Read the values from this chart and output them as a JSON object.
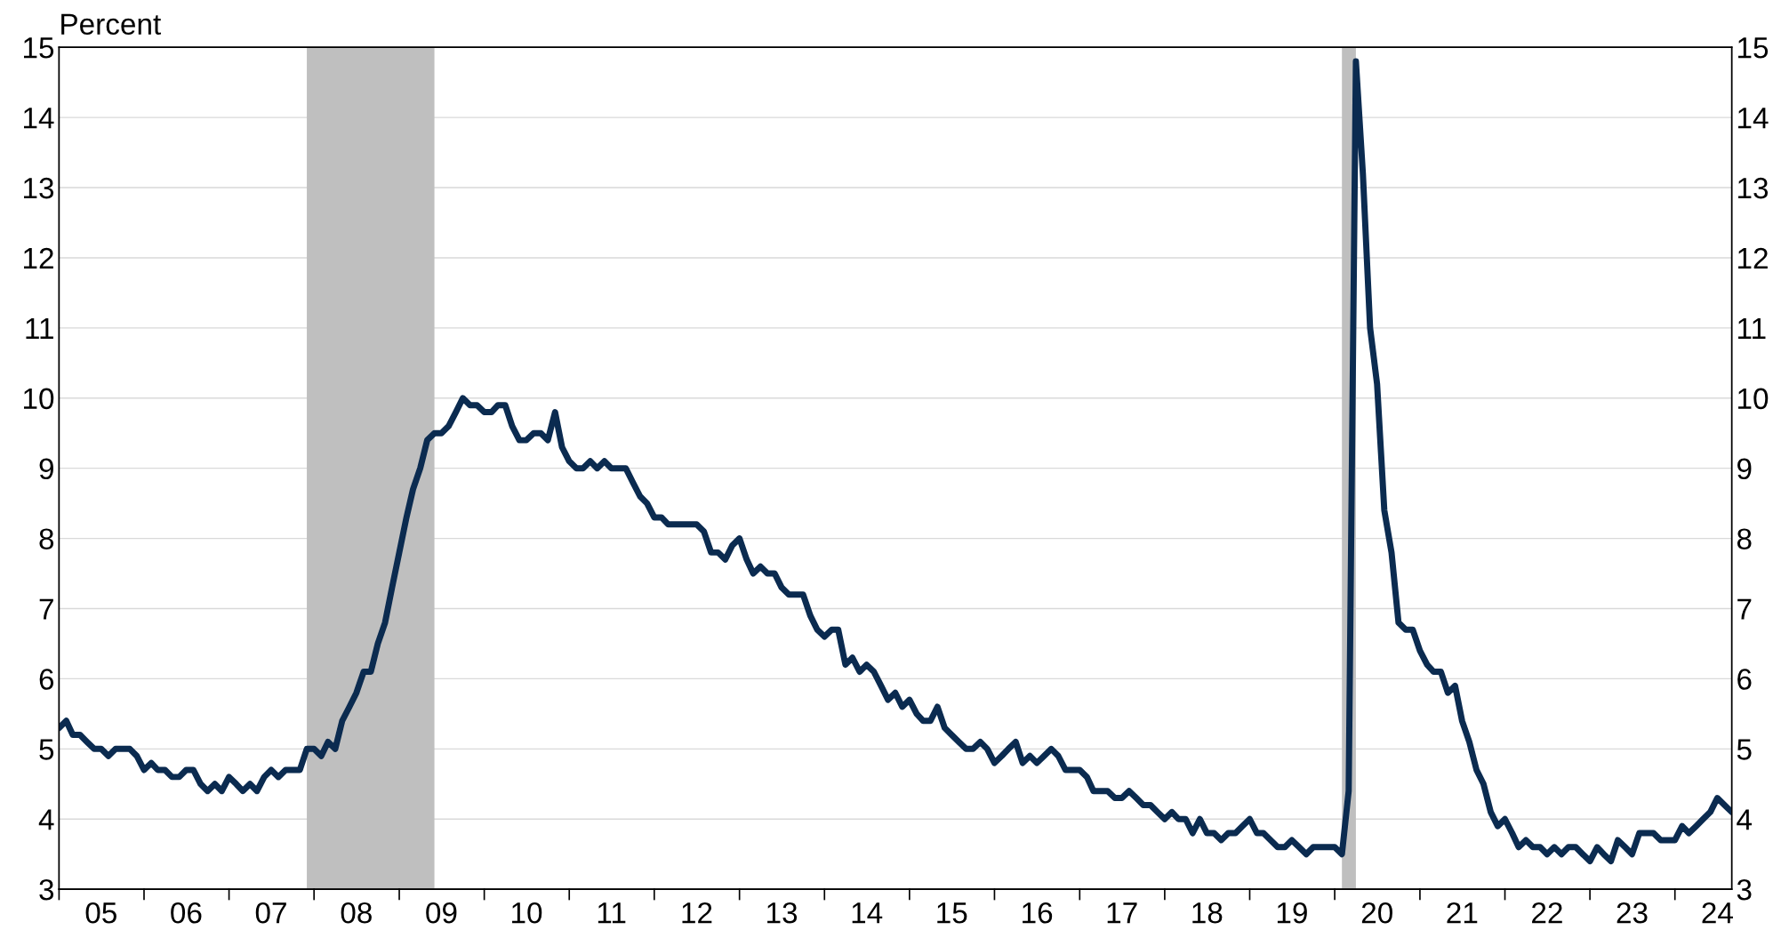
{
  "chart_data": {
    "type": "line",
    "ylabel": "Percent",
    "x": [
      "2005-01",
      "2005-02",
      "2005-03",
      "2005-04",
      "2005-05",
      "2005-06",
      "2005-07",
      "2005-08",
      "2005-09",
      "2005-10",
      "2005-11",
      "2005-12",
      "2006-01",
      "2006-02",
      "2006-03",
      "2006-04",
      "2006-05",
      "2006-06",
      "2006-07",
      "2006-08",
      "2006-09",
      "2006-10",
      "2006-11",
      "2006-12",
      "2007-01",
      "2007-02",
      "2007-03",
      "2007-04",
      "2007-05",
      "2007-06",
      "2007-07",
      "2007-08",
      "2007-09",
      "2007-10",
      "2007-11",
      "2007-12",
      "2008-01",
      "2008-02",
      "2008-03",
      "2008-04",
      "2008-05",
      "2008-06",
      "2008-07",
      "2008-08",
      "2008-09",
      "2008-10",
      "2008-11",
      "2008-12",
      "2009-01",
      "2009-02",
      "2009-03",
      "2009-04",
      "2009-05",
      "2009-06",
      "2009-07",
      "2009-08",
      "2009-09",
      "2009-10",
      "2009-11",
      "2009-12",
      "2010-01",
      "2010-02",
      "2010-03",
      "2010-04",
      "2010-05",
      "2010-06",
      "2010-07",
      "2010-08",
      "2010-09",
      "2010-10",
      "2010-11",
      "2010-12",
      "2011-01",
      "2011-02",
      "2011-03",
      "2011-04",
      "2011-05",
      "2011-06",
      "2011-07",
      "2011-08",
      "2011-09",
      "2011-10",
      "2011-11",
      "2011-12",
      "2012-01",
      "2012-02",
      "2012-03",
      "2012-04",
      "2012-05",
      "2012-06",
      "2012-07",
      "2012-08",
      "2012-09",
      "2012-10",
      "2012-11",
      "2012-12",
      "2013-01",
      "2013-02",
      "2013-03",
      "2013-04",
      "2013-05",
      "2013-06",
      "2013-07",
      "2013-08",
      "2013-09",
      "2013-10",
      "2013-11",
      "2013-12",
      "2014-01",
      "2014-02",
      "2014-03",
      "2014-04",
      "2014-05",
      "2014-06",
      "2014-07",
      "2014-08",
      "2014-09",
      "2014-10",
      "2014-11",
      "2014-12",
      "2015-01",
      "2015-02",
      "2015-03",
      "2015-04",
      "2015-05",
      "2015-06",
      "2015-07",
      "2015-08",
      "2015-09",
      "2015-10",
      "2015-11",
      "2015-12",
      "2016-01",
      "2016-02",
      "2016-03",
      "2016-04",
      "2016-05",
      "2016-06",
      "2016-07",
      "2016-08",
      "2016-09",
      "2016-10",
      "2016-11",
      "2016-12",
      "2017-01",
      "2017-02",
      "2017-03",
      "2017-04",
      "2017-05",
      "2017-06",
      "2017-07",
      "2017-08",
      "2017-09",
      "2017-10",
      "2017-11",
      "2017-12",
      "2018-01",
      "2018-02",
      "2018-03",
      "2018-04",
      "2018-05",
      "2018-06",
      "2018-07",
      "2018-08",
      "2018-09",
      "2018-10",
      "2018-11",
      "2018-12",
      "2019-01",
      "2019-02",
      "2019-03",
      "2019-04",
      "2019-05",
      "2019-06",
      "2019-07",
      "2019-08",
      "2019-09",
      "2019-10",
      "2019-11",
      "2019-12",
      "2020-01",
      "2020-02",
      "2020-03",
      "2020-04",
      "2020-05",
      "2020-06",
      "2020-07",
      "2020-08",
      "2020-09",
      "2020-10",
      "2020-11",
      "2020-12",
      "2021-01",
      "2021-02",
      "2021-03",
      "2021-04",
      "2021-05",
      "2021-06",
      "2021-07",
      "2021-08",
      "2021-09",
      "2021-10",
      "2021-11",
      "2021-12",
      "2022-01",
      "2022-02",
      "2022-03",
      "2022-04",
      "2022-05",
      "2022-06",
      "2022-07",
      "2022-08",
      "2022-09",
      "2022-10",
      "2022-11",
      "2022-12",
      "2023-01",
      "2023-02",
      "2023-03",
      "2023-04",
      "2023-05",
      "2023-06",
      "2023-07",
      "2023-08",
      "2023-09",
      "2023-10",
      "2023-11",
      "2023-12",
      "2024-01",
      "2024-02",
      "2024-03",
      "2024-04",
      "2024-05",
      "2024-06",
      "2024-07",
      "2024-08",
      "2024-09"
    ],
    "series": [
      {
        "color": "#0b2b50",
        "values": [
          5.3,
          5.4,
          5.2,
          5.2,
          5.1,
          5.0,
          5.0,
          4.9,
          5.0,
          5.0,
          5.0,
          4.9,
          4.7,
          4.8,
          4.7,
          4.7,
          4.6,
          4.6,
          4.7,
          4.7,
          4.5,
          4.4,
          4.5,
          4.4,
          4.6,
          4.5,
          4.4,
          4.5,
          4.4,
          4.6,
          4.7,
          4.6,
          4.7,
          4.7,
          4.7,
          5.0,
          5.0,
          4.9,
          5.1,
          5.0,
          5.4,
          5.6,
          5.8,
          6.1,
          6.1,
          6.5,
          6.8,
          7.3,
          7.8,
          8.3,
          8.7,
          9.0,
          9.4,
          9.5,
          9.5,
          9.6,
          9.8,
          10.0,
          9.9,
          9.9,
          9.8,
          9.8,
          9.9,
          9.9,
          9.6,
          9.4,
          9.4,
          9.5,
          9.5,
          9.4,
          9.8,
          9.3,
          9.1,
          9.0,
          9.0,
          9.1,
          9.0,
          9.1,
          9.0,
          9.0,
          9.0,
          8.8,
          8.6,
          8.5,
          8.3,
          8.3,
          8.2,
          8.2,
          8.2,
          8.2,
          8.2,
          8.1,
          7.8,
          7.8,
          7.7,
          7.9,
          8.0,
          7.7,
          7.5,
          7.6,
          7.5,
          7.5,
          7.3,
          7.2,
          7.2,
          7.2,
          6.9,
          6.7,
          6.6,
          6.7,
          6.7,
          6.2,
          6.3,
          6.1,
          6.2,
          6.1,
          5.9,
          5.7,
          5.8,
          5.6,
          5.7,
          5.5,
          5.4,
          5.4,
          5.6,
          5.3,
          5.2,
          5.1,
          5.0,
          5.0,
          5.1,
          5.0,
          4.8,
          4.9,
          5.0,
          5.1,
          4.8,
          4.9,
          4.8,
          4.9,
          5.0,
          4.9,
          4.7,
          4.7,
          4.7,
          4.6,
          4.4,
          4.4,
          4.4,
          4.3,
          4.3,
          4.4,
          4.3,
          4.2,
          4.2,
          4.1,
          4.0,
          4.1,
          4.0,
          4.0,
          3.8,
          4.0,
          3.8,
          3.8,
          3.7,
          3.8,
          3.8,
          3.9,
          4.0,
          3.8,
          3.8,
          3.7,
          3.6,
          3.6,
          3.7,
          3.6,
          3.5,
          3.6,
          3.6,
          3.6,
          3.6,
          3.5,
          4.4,
          14.8,
          13.2,
          11.0,
          10.2,
          8.4,
          7.8,
          6.8,
          6.7,
          6.7,
          6.4,
          6.2,
          6.1,
          6.1,
          5.8,
          5.9,
          5.4,
          5.1,
          4.7,
          4.5,
          4.1,
          3.9,
          4.0,
          3.8,
          3.6,
          3.7,
          3.6,
          3.6,
          3.5,
          3.6,
          3.5,
          3.6,
          3.6,
          3.5,
          3.4,
          3.6,
          3.5,
          3.4,
          3.7,
          3.6,
          3.5,
          3.8,
          3.8,
          3.8,
          3.7,
          3.7,
          3.7,
          3.9,
          3.8,
          3.9,
          4.0,
          4.1,
          4.3,
          4.2,
          4.1
        ]
      }
    ],
    "xlim": [
      "2005-01",
      "2024-09"
    ],
    "xticks": [
      {
        "value": "2005-01",
        "label": null
      },
      {
        "value": "2005-07",
        "label": "05"
      },
      {
        "value": "2006-01",
        "label": null
      },
      {
        "value": "2006-07",
        "label": "06"
      },
      {
        "value": "2007-01",
        "label": null
      },
      {
        "value": "2007-07",
        "label": "07"
      },
      {
        "value": "2008-01",
        "label": null
      },
      {
        "value": "2008-07",
        "label": "08"
      },
      {
        "value": "2009-01",
        "label": null
      },
      {
        "value": "2009-07",
        "label": "09"
      },
      {
        "value": "2010-01",
        "label": null
      },
      {
        "value": "2010-07",
        "label": "10"
      },
      {
        "value": "2011-01",
        "label": null
      },
      {
        "value": "2011-07",
        "label": "11"
      },
      {
        "value": "2012-01",
        "label": null
      },
      {
        "value": "2012-07",
        "label": "12"
      },
      {
        "value": "2013-01",
        "label": null
      },
      {
        "value": "2013-07",
        "label": "13"
      },
      {
        "value": "2014-01",
        "label": null
      },
      {
        "value": "2014-07",
        "label": "14"
      },
      {
        "value": "2015-01",
        "label": null
      },
      {
        "value": "2015-07",
        "label": "15"
      },
      {
        "value": "2016-01",
        "label": null
      },
      {
        "value": "2016-07",
        "label": "16"
      },
      {
        "value": "2017-01",
        "label": null
      },
      {
        "value": "2017-07",
        "label": "17"
      },
      {
        "value": "2018-01",
        "label": null
      },
      {
        "value": "2018-07",
        "label": "18"
      },
      {
        "value": "2019-01",
        "label": null
      },
      {
        "value": "2019-07",
        "label": "19"
      },
      {
        "value": "2020-01",
        "label": null
      },
      {
        "value": "2020-07",
        "label": "20"
      },
      {
        "value": "2021-01",
        "label": null
      },
      {
        "value": "2021-07",
        "label": "21"
      },
      {
        "value": "2022-01",
        "label": null
      },
      {
        "value": "2022-07",
        "label": "22"
      },
      {
        "value": "2023-01",
        "label": null
      },
      {
        "value": "2023-07",
        "label": "23"
      },
      {
        "value": "2024-01",
        "label": null
      },
      {
        "value": "2024-07",
        "label": "24"
      }
    ],
    "ylim": [
      3,
      15
    ],
    "yticks": [
      3,
      4,
      5,
      6,
      7,
      8,
      9,
      10,
      11,
      12,
      13,
      14,
      15
    ],
    "y2lim": [
      3,
      15
    ],
    "y2ticks": [
      3,
      4,
      5,
      6,
      7,
      8,
      9,
      10,
      11,
      12,
      13,
      14,
      15
    ],
    "bands": [
      {
        "axis": "x",
        "from": "2007-12",
        "to": "2009-06",
        "color": "#bfbfbf"
      },
      {
        "axis": "x",
        "from": "2020-02",
        "to": "2020-04",
        "color": "#bfbfbf"
      }
    ],
    "grid": "y",
    "legend": false,
    "marker": "none",
    "line_style": "solid"
  }
}
